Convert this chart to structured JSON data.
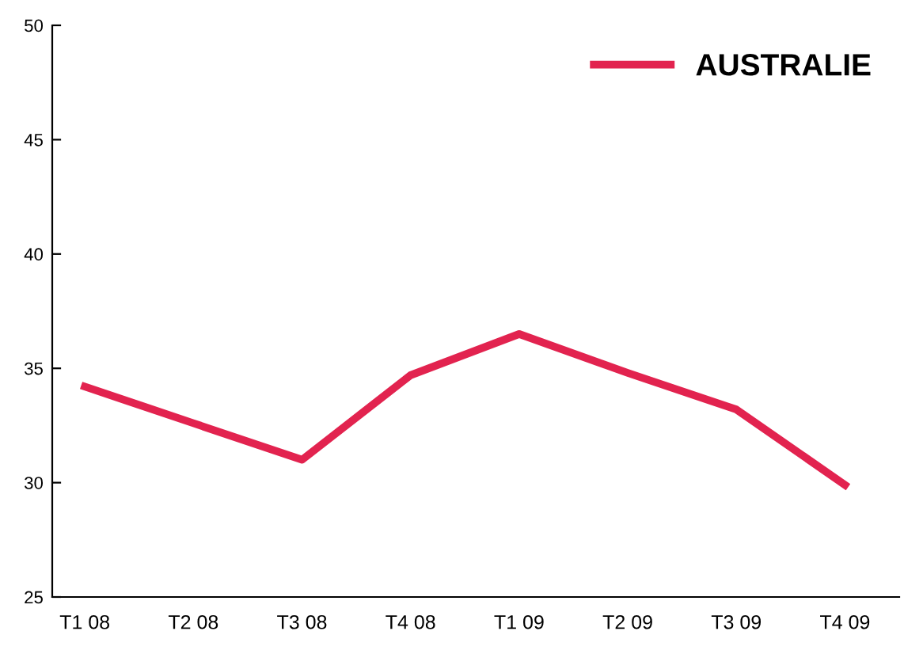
{
  "chart_data": {
    "type": "line",
    "categories": [
      "T1 08",
      "T2 08",
      "T3 08",
      "T4 08",
      "T1 09",
      "T2 09",
      "T3 09",
      "T4 09"
    ],
    "series": [
      {
        "name": "AUSTRALIE",
        "color": "#e2234f",
        "values": [
          34.2,
          32.6,
          31.0,
          34.7,
          36.5,
          34.8,
          33.2,
          29.9
        ]
      }
    ],
    "ylim": [
      25,
      50
    ],
    "yticks": [
      25,
      30,
      35,
      40,
      45,
      50
    ],
    "grid": false,
    "legend": "top right",
    "marker": "none",
    "line_style": "solid"
  }
}
